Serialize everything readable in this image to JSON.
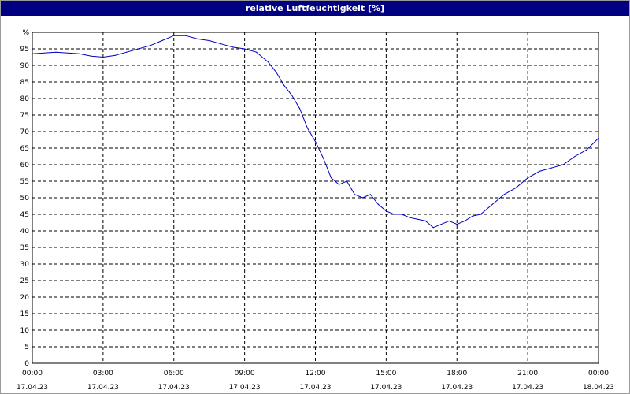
{
  "window": {
    "title": "relative Luftfeuchtigkeit [%]"
  },
  "chart_data": {
    "type": "line",
    "title": "relative Luftfeuchtigkeit [%]",
    "ylabel": "%",
    "xlabel": "",
    "ylim": [
      0,
      100
    ],
    "xlim": [
      "17.04.23 00:00",
      "18.04.23 00:00"
    ],
    "grid": true,
    "y_ticks": [
      "0",
      "5",
      "10",
      "15",
      "20",
      "25",
      "30",
      "35",
      "40",
      "45",
      "50",
      "55",
      "60",
      "65",
      "70",
      "75",
      "80",
      "85",
      "90",
      "95",
      "%"
    ],
    "x_ticks": [
      {
        "time": "00:00",
        "date": "17.04.23"
      },
      {
        "time": "03:00",
        "date": "17.04.23"
      },
      {
        "time": "06:00",
        "date": "17.04.23"
      },
      {
        "time": "09:00",
        "date": "17.04.23"
      },
      {
        "time": "12:00",
        "date": "17.04.23"
      },
      {
        "time": "15:00",
        "date": "17.04.23"
      },
      {
        "time": "18:00",
        "date": "17.04.23"
      },
      {
        "time": "21:00",
        "date": "17.04.23"
      },
      {
        "time": "00:00",
        "date": "18.04.23"
      }
    ],
    "series": [
      {
        "color": "#0000c0",
        "x": [
          "17.04.23 00:00",
          "17.04.23 01:00",
          "17.04.23 02:00",
          "17.04.23 02:30",
          "17.04.23 03:00",
          "17.04.23 03:30",
          "17.04.23 04:00",
          "17.04.23 04:30",
          "17.04.23 05:00",
          "17.04.23 05:30",
          "17.04.23 06:00",
          "17.04.23 06:30",
          "17.04.23 07:00",
          "17.04.23 07:30",
          "17.04.23 08:00",
          "17.04.23 08:30",
          "17.04.23 09:00",
          "17.04.23 09:30",
          "17.04.23 10:00",
          "17.04.23 10:20",
          "17.04.23 10:40",
          "17.04.23 11:00",
          "17.04.23 11:20",
          "17.04.23 11:40",
          "17.04.23 12:00",
          "17.04.23 12:20",
          "17.04.23 12:40",
          "17.04.23 13:00",
          "17.04.23 13:20",
          "17.04.23 13:40",
          "17.04.23 14:00",
          "17.04.23 14:20",
          "17.04.23 14:40",
          "17.04.23 15:00",
          "17.04.23 15:20",
          "17.04.23 15:40",
          "17.04.23 16:00",
          "17.04.23 16:20",
          "17.04.23 16:40",
          "17.04.23 17:00",
          "17.04.23 17:20",
          "17.04.23 17:40",
          "17.04.23 18:00",
          "17.04.23 18:20",
          "17.04.23 18:40",
          "17.04.23 19:00",
          "17.04.23 19:30",
          "17.04.23 20:00",
          "17.04.23 20:30",
          "17.04.23 21:00",
          "17.04.23 21:30",
          "17.04.23 22:00",
          "17.04.23 22:30",
          "17.04.23 23:00",
          "17.04.23 23:30",
          "18.04.23 00:00"
        ],
        "values": [
          93.5,
          94,
          93.5,
          92.8,
          92.5,
          93,
          94,
          95,
          96,
          97.5,
          99,
          99,
          98,
          97.5,
          96.5,
          95.5,
          95,
          94,
          91,
          88,
          84,
          81,
          77,
          71,
          67,
          62,
          56,
          54,
          55,
          51,
          50,
          51,
          48,
          46,
          45,
          45,
          44,
          43.5,
          43,
          41,
          42,
          43,
          42,
          43,
          44.5,
          45,
          48,
          51,
          53,
          56,
          58,
          59,
          60,
          62.5,
          64.5,
          68
        ]
      }
    ]
  }
}
